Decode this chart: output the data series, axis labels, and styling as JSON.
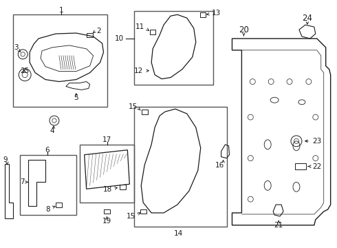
{
  "bg_color": "#ffffff",
  "line_color": "#1a1a1a",
  "font_size": 7.5,
  "fig_width": 4.9,
  "fig_height": 3.6,
  "dpi": 100
}
